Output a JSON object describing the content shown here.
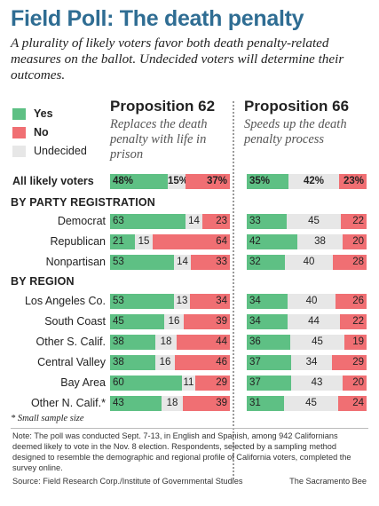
{
  "title": "Field Poll: The death penalty",
  "subtitle": "A plurality of likely voters favor both death penalty-related measures on the ballot. Undecided voters will determine their outcomes.",
  "legend": [
    {
      "label": "Yes",
      "color": "#5ec084"
    },
    {
      "label": "No",
      "color": "#f06f73"
    },
    {
      "label": "Undecided",
      "color": "#e7e7e7"
    }
  ],
  "propositions": [
    {
      "title": "Proposition 62",
      "description": "Replaces the death penalty with life in prison"
    },
    {
      "title": "Proposition 66",
      "description": "Speeds up the death penalty process"
    }
  ],
  "sections": {
    "party": "BY PARTY REGISTRATION",
    "region": "BY REGION"
  },
  "footnote": "* Small sample size",
  "note": "Note: The poll was conducted Sept. 7-13, in English and Spanish, among 942 Californians deemed likely to vote in the Nov. 8 election. Respondents, selected by a sampling method designed to resemble the demographic and regional profile of California voters, completed the survey online.",
  "source": "Source: Field Research Corp./Institute of Governmental Studies",
  "credit": "The Sacramento Bee",
  "chart_data": {
    "type": "bar",
    "stacked": true,
    "normalized": "100%",
    "series_names": [
      "Yes",
      "No",
      "Undecided"
    ],
    "colors": {
      "Yes": "#5ec084",
      "No": "#f06f73",
      "Undecided": "#e7e7e7"
    },
    "rows": [
      {
        "label": "All likely voters",
        "group": "total",
        "prop62": {
          "yes": "48%",
          "und": "15%",
          "no": "37%"
        },
        "prop66": {
          "yes": "35%",
          "und": "42%",
          "no": "23%"
        }
      },
      {
        "label": "Democrat",
        "group": "party",
        "prop62": {
          "yes": "63",
          "und": "14",
          "no": "23"
        },
        "prop66": {
          "yes": "33",
          "und": "45",
          "no": "22"
        }
      },
      {
        "label": "Republican",
        "group": "party",
        "prop62": {
          "yes": "21",
          "und": "15",
          "no": "64"
        },
        "prop66": {
          "yes": "42",
          "und": "38",
          "no": "20"
        }
      },
      {
        "label": "Nonpartisan",
        "group": "party",
        "prop62": {
          "yes": "53",
          "und": "14",
          "no": "33"
        },
        "prop66": {
          "yes": "32",
          "und": "40",
          "no": "28"
        }
      },
      {
        "label": "Los Angeles Co.",
        "group": "region",
        "prop62": {
          "yes": "53",
          "und": "13",
          "no": "34"
        },
        "prop66": {
          "yes": "34",
          "und": "40",
          "no": "26"
        }
      },
      {
        "label": "South Coast",
        "group": "region",
        "prop62": {
          "yes": "45",
          "und": "16",
          "no": "39"
        },
        "prop66": {
          "yes": "34",
          "und": "44",
          "no": "22"
        }
      },
      {
        "label": "Other S. Calif.",
        "group": "region",
        "prop62": {
          "yes": "38",
          "und": "18",
          "no": "44"
        },
        "prop66": {
          "yes": "36",
          "und": "45",
          "no": "19"
        }
      },
      {
        "label": "Central Valley",
        "group": "region",
        "prop62": {
          "yes": "38",
          "und": "16",
          "no": "46"
        },
        "prop66": {
          "yes": "37",
          "und": "34",
          "no": "29"
        }
      },
      {
        "label": "Bay Area",
        "group": "region",
        "prop62": {
          "yes": "60",
          "und": "11",
          "no": "29"
        },
        "prop66": {
          "yes": "37",
          "und": "43",
          "no": "20"
        }
      },
      {
        "label": "Other N. Calif.*",
        "group": "region",
        "prop62": {
          "yes": "43",
          "und": "18",
          "no": "39"
        },
        "prop66": {
          "yes": "31",
          "und": "45",
          "no": "24"
        }
      }
    ]
  }
}
